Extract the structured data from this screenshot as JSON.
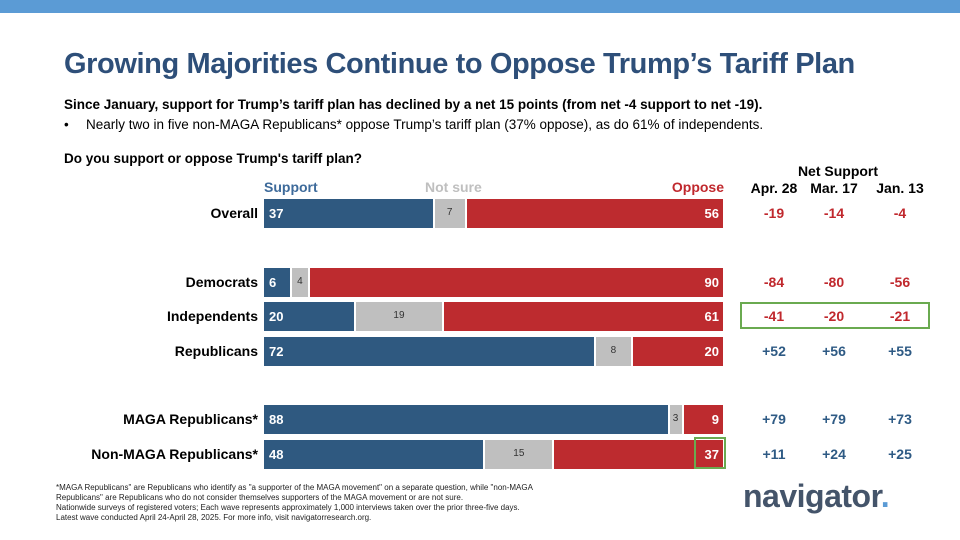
{
  "title": "Growing Majorities Continue to Oppose Trump’s Tariff Plan",
  "subtitle": "Since January, support for Trump’s tariff plan has declined by a net 15 points (from net -4 support to net -19).",
  "bullet": {
    "marker": "•",
    "text": "Nearly two in five non-MAGA Republicans* oppose Trump’s tariff plan (37% oppose), as do 61% of independents."
  },
  "question": "Do you support or oppose Trump's tariff plan?",
  "column_headers": {
    "support": "Support",
    "not_sure": "Not sure",
    "oppose": "Oppose"
  },
  "net_support": {
    "title": "Net Support",
    "waves": [
      "Apr. 28",
      "Mar. 17",
      "Jan. 13"
    ]
  },
  "colors": {
    "support": "#2f5980",
    "not_sure": "#bfbfbf",
    "oppose": "#bd2b2f",
    "highlight": "#6aaa50",
    "title": "#2e4f79"
  },
  "chart_data": {
    "type": "bar",
    "orientation": "horizontal-stacked",
    "categories": [
      "Overall",
      "Democrats",
      "Independents",
      "Republicans",
      "MAGA Republicans*",
      "Non-MAGA Republicans*"
    ],
    "series": [
      {
        "name": "Support",
        "values": [
          37,
          6,
          20,
          72,
          88,
          48
        ]
      },
      {
        "name": "Not sure",
        "values": [
          7,
          4,
          19,
          8,
          3,
          15
        ]
      },
      {
        "name": "Oppose",
        "values": [
          56,
          90,
          61,
          20,
          9,
          37
        ]
      }
    ],
    "net_support": [
      {
        "category": "Overall",
        "values": [
          "-19",
          "-14",
          "-4"
        ]
      },
      {
        "category": "Democrats",
        "values": [
          "-84",
          "-80",
          "-56"
        ]
      },
      {
        "category": "Independents",
        "values": [
          "-41",
          "-20",
          "-21"
        ]
      },
      {
        "category": "Republicans",
        "values": [
          "+52",
          "+56",
          "+55"
        ]
      },
      {
        "category": "MAGA Republicans*",
        "values": [
          "+79",
          "+79",
          "+73"
        ]
      },
      {
        "category": "Non-MAGA Republicans*",
        "values": [
          "+11",
          "+24",
          "+25"
        ]
      }
    ],
    "xlim": [
      0,
      100
    ]
  },
  "footnotes": [
    "*MAGA Republicans\" are Republicans who identify as \"a supporter of the MAGA movement\" on a separate question, while \"non-MAGA",
    "Republicans\" are Republicans who do not consider themselves supporters of the MAGA movement or are not sure.",
    "Nationwide surveys of registered voters; Each wave represents approximately 1,000 interviews taken over the prior three-five days.",
    "Latest wave conducted April 24-April 28, 2025. For more info, visit navigatorresearch.org."
  ],
  "logo": {
    "text": "navigator",
    "dot": "."
  }
}
